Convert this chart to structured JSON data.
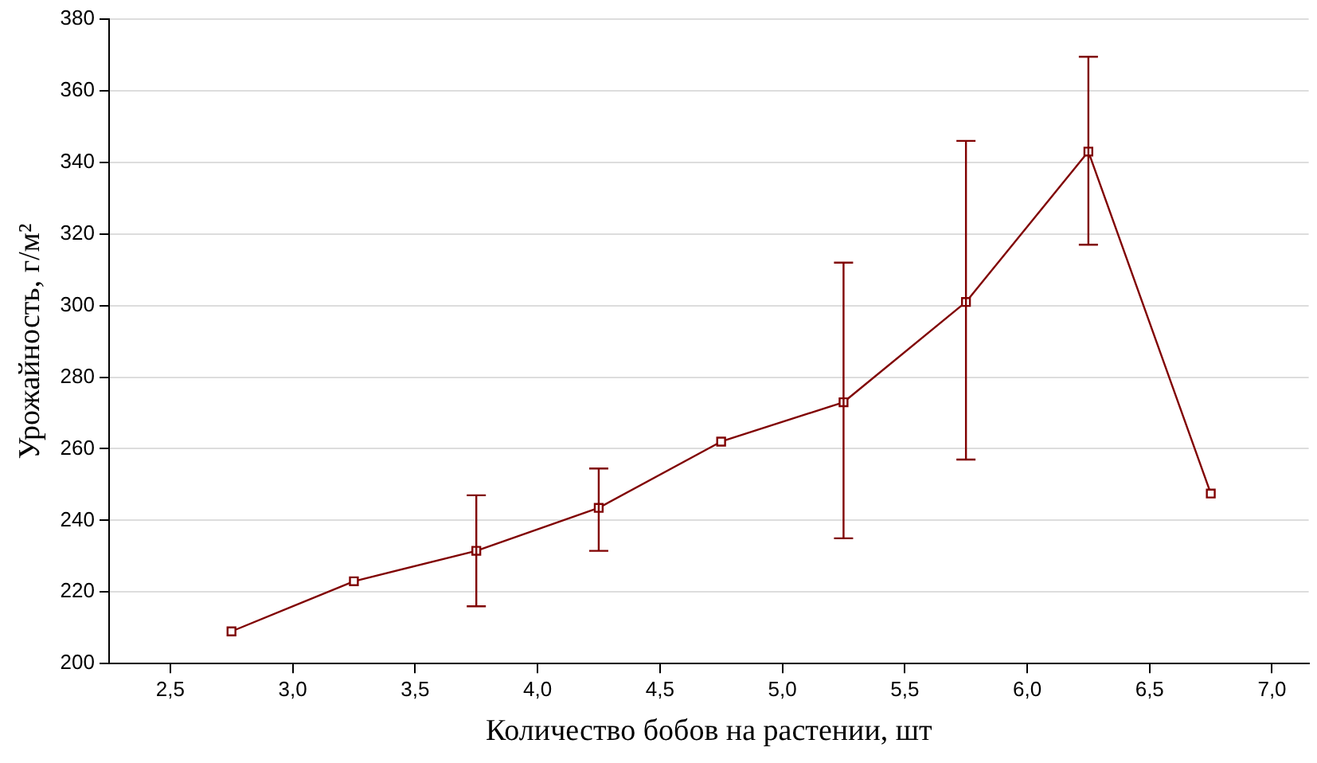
{
  "chart_data": {
    "type": "line",
    "xlabel": "Количество бобов на растении, шт",
    "ylabel": "Урожайность, г/м²",
    "x": [
      2.75,
      3.25,
      3.75,
      4.25,
      4.75,
      5.25,
      5.75,
      6.25,
      6.75
    ],
    "series": [
      {
        "color": "#800000",
        "values": [
          209,
          223,
          231.5,
          243.5,
          262,
          273,
          301,
          343,
          247.5
        ],
        "errors": [
          null,
          null,
          [
            216,
            247
          ],
          [
            231.5,
            254.5
          ],
          null,
          [
            235,
            312
          ],
          [
            257,
            346
          ],
          [
            317,
            369.5
          ],
          null
        ]
      }
    ],
    "xlim": [
      2.25,
      7.15
    ],
    "xticks": [
      {
        "value": 2.5,
        "label": "2,5"
      },
      {
        "value": 3,
        "label": "3,0"
      },
      {
        "value": 3.5,
        "label": "3,5"
      },
      {
        "value": 4,
        "label": "4,0"
      },
      {
        "value": 4.5,
        "label": "4,5"
      },
      {
        "value": 5,
        "label": "5,0"
      },
      {
        "value": 5.5,
        "label": "5,5"
      },
      {
        "value": 6,
        "label": "6,0"
      },
      {
        "value": 6.5,
        "label": "6,5"
      },
      {
        "value": 7,
        "label": "7,0"
      }
    ],
    "ylim": [
      200,
      380
    ],
    "yticks": [
      200,
      220,
      240,
      260,
      280,
      300,
      320,
      340,
      360,
      380
    ],
    "grid": "y",
    "marker": "square",
    "line_style": "solid",
    "legend": false
  }
}
